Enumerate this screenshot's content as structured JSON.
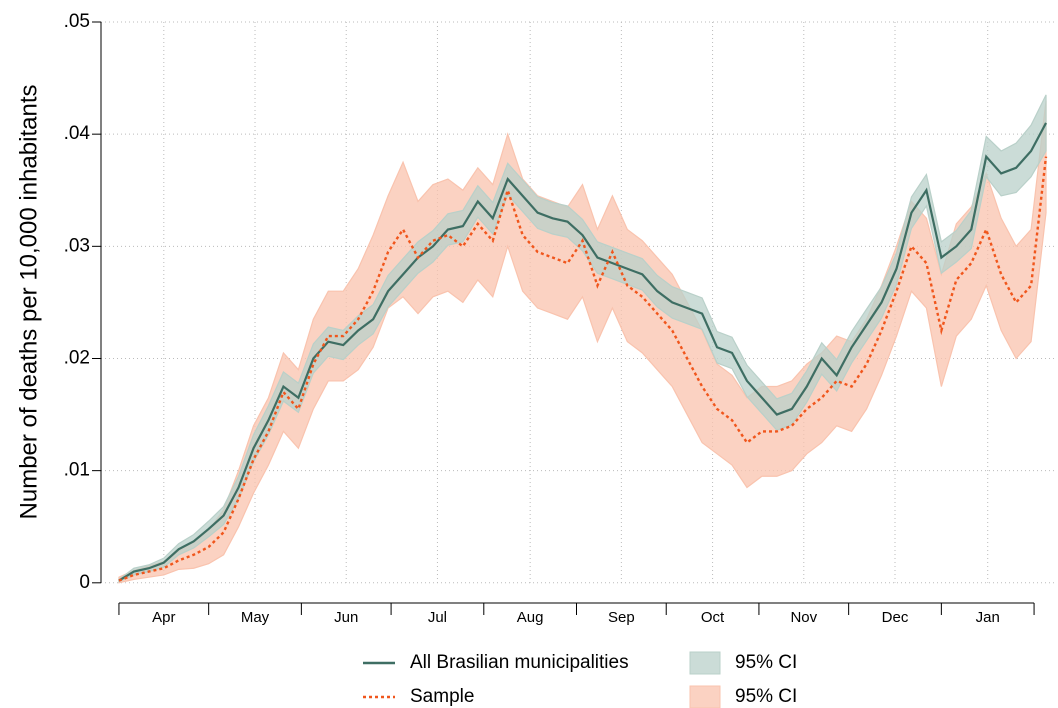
{
  "chart_data": {
    "type": "line",
    "ylabel": "Number of deaths per 10,000 inhabitants",
    "categories": [
      "Apr",
      "May",
      "Jun",
      "Jul",
      "Aug",
      "Sep",
      "Oct",
      "Nov",
      "Dec",
      "Jan"
    ],
    "xlim": [
      -6,
      313
    ],
    "xticks": [
      0,
      30,
      61,
      91,
      122,
      153,
      183,
      214,
      244,
      275,
      306
    ],
    "ylim": [
      -0.0018,
      0.05
    ],
    "yticks": [
      0,
      {
        "value": 0.01,
        "label": ".01"
      },
      {
        "value": 0.02,
        "label": ".02"
      },
      {
        "value": 0.03,
        "label": ".03"
      },
      {
        "value": 0.04,
        "label": ".04"
      },
      {
        "value": 0.05,
        "label": ".05"
      }
    ],
    "grid": true,
    "x": [
      0,
      5,
      10,
      15,
      20,
      25,
      30,
      35,
      40,
      45,
      50,
      55,
      60,
      65,
      70,
      75,
      80,
      85,
      90,
      95,
      100,
      105,
      110,
      115,
      120,
      125,
      130,
      135,
      140,
      145,
      150,
      155,
      160,
      165,
      170,
      175,
      180,
      185,
      190,
      195,
      200,
      205,
      210,
      215,
      220,
      225,
      230,
      235,
      240,
      245,
      250,
      255,
      260,
      265,
      270,
      275,
      280,
      285,
      290,
      295,
      300,
      305,
      310
    ],
    "series": [
      {
        "name": "All Brasilian municipalities",
        "ci_name": "95% CI",
        "color": "#3e6e63",
        "ci_color": "#b9d0c9",
        "dash": false,
        "values": [
          0.0002,
          0.001,
          0.0013,
          0.0018,
          0.003,
          0.0037,
          0.0048,
          0.006,
          0.0085,
          0.012,
          0.0145,
          0.0175,
          0.0165,
          0.02,
          0.0215,
          0.0212,
          0.0225,
          0.0235,
          0.026,
          0.0275,
          0.029,
          0.03,
          0.0315,
          0.0318,
          0.034,
          0.0325,
          0.036,
          0.0345,
          0.033,
          0.0325,
          0.0322,
          0.031,
          0.029,
          0.0285,
          0.028,
          0.0275,
          0.026,
          0.025,
          0.0245,
          0.024,
          0.021,
          0.0205,
          0.018,
          0.0165,
          0.015,
          0.0155,
          0.0175,
          0.02,
          0.0185,
          0.021,
          0.023,
          0.025,
          0.028,
          0.033,
          0.035,
          0.029,
          0.03,
          0.0315,
          0.038,
          0.0365,
          0.037,
          0.0385,
          0.041
        ],
        "ci_low": [
          0.0001,
          0.0007,
          0.001,
          0.0014,
          0.0025,
          0.0031,
          0.0041,
          0.0052,
          0.0075,
          0.0108,
          0.0132,
          0.0162,
          0.0152,
          0.0187,
          0.0202,
          0.0199,
          0.0212,
          0.0222,
          0.0246,
          0.0261,
          0.0276,
          0.0286,
          0.0301,
          0.0304,
          0.0326,
          0.0311,
          0.0346,
          0.0331,
          0.0316,
          0.0311,
          0.0308,
          0.0296,
          0.0276,
          0.0271,
          0.0266,
          0.0261,
          0.0246,
          0.0236,
          0.0231,
          0.0226,
          0.0196,
          0.0191,
          0.0166,
          0.0151,
          0.0136,
          0.0141,
          0.0161,
          0.0186,
          0.0171,
          0.0196,
          0.0216,
          0.0236,
          0.0266,
          0.0316,
          0.0336,
          0.0276,
          0.0286,
          0.0298,
          0.0362,
          0.0345,
          0.0348,
          0.0362,
          0.0385
        ],
        "ci_high": [
          0.0003,
          0.0013,
          0.0016,
          0.0022,
          0.0035,
          0.0043,
          0.0055,
          0.0068,
          0.0095,
          0.0132,
          0.0158,
          0.0188,
          0.0178,
          0.0213,
          0.0228,
          0.0225,
          0.0238,
          0.0248,
          0.0274,
          0.0289,
          0.0304,
          0.0314,
          0.0329,
          0.0332,
          0.0354,
          0.0339,
          0.0374,
          0.0359,
          0.0344,
          0.0339,
          0.0336,
          0.0324,
          0.0304,
          0.0299,
          0.0294,
          0.0289,
          0.0274,
          0.0264,
          0.0259,
          0.0254,
          0.0224,
          0.0219,
          0.0194,
          0.0179,
          0.0164,
          0.0169,
          0.0189,
          0.0214,
          0.0199,
          0.0224,
          0.0244,
          0.0264,
          0.0294,
          0.0344,
          0.0364,
          0.0304,
          0.0314,
          0.0332,
          0.0398,
          0.0385,
          0.0392,
          0.0408,
          0.0435
        ]
      },
      {
        "name": "Sample",
        "ci_name": "95% CI",
        "color": "#f0561c",
        "ci_color": "#f9c3ae",
        "dash": true,
        "values": [
          0.0002,
          0.0007,
          0.001,
          0.0013,
          0.002,
          0.0025,
          0.0032,
          0.0045,
          0.0075,
          0.011,
          0.0135,
          0.017,
          0.0155,
          0.0195,
          0.022,
          0.022,
          0.0235,
          0.026,
          0.0295,
          0.0315,
          0.029,
          0.0305,
          0.031,
          0.03,
          0.032,
          0.0305,
          0.035,
          0.031,
          0.0295,
          0.029,
          0.0285,
          0.0305,
          0.0265,
          0.0295,
          0.0265,
          0.0255,
          0.024,
          0.0225,
          0.02,
          0.0175,
          0.0155,
          0.0145,
          0.0125,
          0.0135,
          0.0135,
          0.014,
          0.0155,
          0.0165,
          0.018,
          0.0175,
          0.0195,
          0.0225,
          0.026,
          0.03,
          0.0285,
          0.0225,
          0.027,
          0.0285,
          0.0315,
          0.0275,
          0.025,
          0.0265,
          0.038
        ],
        "ci_low": [
          0,
          0.0003,
          0.0005,
          0.0007,
          0.0012,
          0.0013,
          0.0017,
          0.0025,
          0.005,
          0.008,
          0.0105,
          0.0135,
          0.012,
          0.0155,
          0.018,
          0.018,
          0.019,
          0.021,
          0.0245,
          0.0255,
          0.024,
          0.0255,
          0.026,
          0.025,
          0.027,
          0.0255,
          0.03,
          0.026,
          0.0245,
          0.024,
          0.0235,
          0.0255,
          0.0215,
          0.0245,
          0.0215,
          0.0205,
          0.019,
          0.0175,
          0.015,
          0.0125,
          0.0115,
          0.0105,
          0.0085,
          0.0095,
          0.0095,
          0.01,
          0.0115,
          0.0125,
          0.014,
          0.0135,
          0.0155,
          0.0185,
          0.022,
          0.026,
          0.0245,
          0.0175,
          0.022,
          0.0235,
          0.0265,
          0.0225,
          0.02,
          0.0215,
          0.033
        ],
        "ci_high": [
          0.0005,
          0.0011,
          0.0015,
          0.0019,
          0.0028,
          0.0037,
          0.0047,
          0.0065,
          0.01,
          0.014,
          0.0165,
          0.0205,
          0.019,
          0.0235,
          0.026,
          0.026,
          0.028,
          0.031,
          0.0345,
          0.0375,
          0.034,
          0.0355,
          0.036,
          0.035,
          0.037,
          0.0355,
          0.04,
          0.036,
          0.0345,
          0.034,
          0.0335,
          0.0355,
          0.0315,
          0.0345,
          0.0315,
          0.0305,
          0.029,
          0.0275,
          0.025,
          0.0225,
          0.0195,
          0.0185,
          0.0165,
          0.0175,
          0.0175,
          0.018,
          0.0195,
          0.0205,
          0.022,
          0.0215,
          0.0235,
          0.0265,
          0.03,
          0.034,
          0.0325,
          0.0275,
          0.032,
          0.0335,
          0.0365,
          0.0325,
          0.03,
          0.0315,
          0.043
        ]
      }
    ]
  }
}
